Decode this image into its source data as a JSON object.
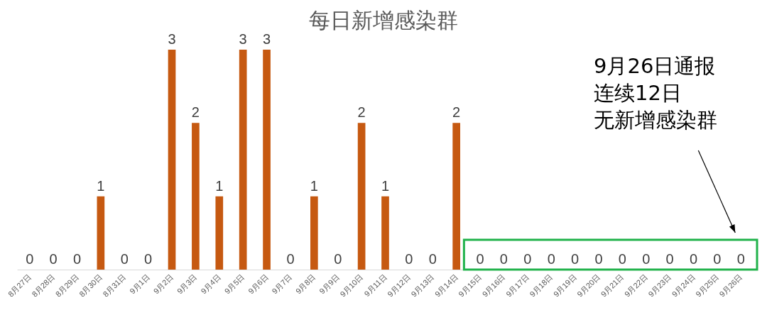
{
  "chart_data": {
    "type": "bar",
    "title": "每日新增感染群",
    "categories": [
      "8月27日",
      "8月28日",
      "8月29日",
      "8月30日",
      "8月31日",
      "9月1日",
      "9月2日",
      "9月3日",
      "9月4日",
      "9月5日",
      "9月6日",
      "9月7日",
      "9月8日",
      "9月9日",
      "9月10日",
      "9月11日",
      "9月12日",
      "9月13日",
      "9月14日",
      "9月15日",
      "9月16日",
      "9月17日",
      "9月18日",
      "9月19日",
      "9月20日",
      "9月21日",
      "9月22日",
      "9月23日",
      "9月24日",
      "9月25日",
      "9月26日"
    ],
    "values": [
      0,
      0,
      0,
      1,
      0,
      0,
      3,
      2,
      1,
      3,
      3,
      0,
      1,
      0,
      2,
      1,
      0,
      0,
      2,
      0,
      0,
      0,
      0,
      0,
      0,
      0,
      0,
      0,
      0,
      0,
      0
    ],
    "color": "#c65911",
    "data_labels": true,
    "annotations": [
      "9月26日通报",
      "连续12日",
      "无新增感染群"
    ]
  }
}
